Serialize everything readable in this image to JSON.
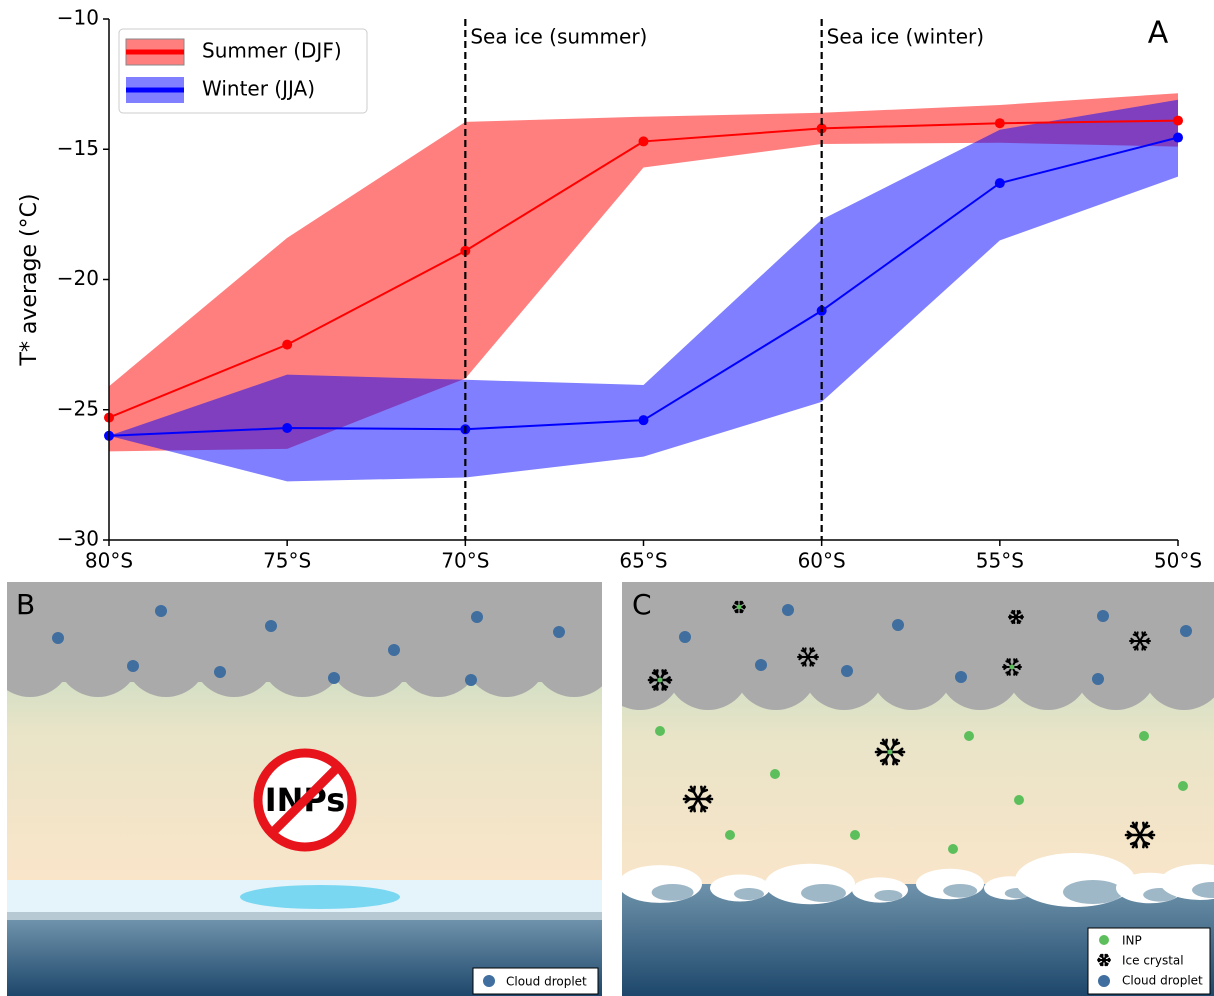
{
  "chart_data": {
    "type": "line",
    "panel_label": "A",
    "y_label": "T* average (°C)",
    "x": [
      80,
      75,
      70,
      65,
      60,
      55,
      50
    ],
    "xlim": [
      80,
      50
    ],
    "xticks": [
      {
        "value": 80,
        "label": "80°S"
      },
      {
        "value": 75,
        "label": "75°S"
      },
      {
        "value": 70,
        "label": "70°S"
      },
      {
        "value": 65,
        "label": "65°S"
      },
      {
        "value": 60,
        "label": "60°S"
      },
      {
        "value": 55,
        "label": "55°S"
      },
      {
        "value": 50,
        "label": "50°S"
      }
    ],
    "ylim": [
      -30,
      -10
    ],
    "yticks": [
      {
        "value": -30,
        "label": "−30"
      },
      {
        "value": -25,
        "label": "−25"
      },
      {
        "value": -20,
        "label": "−20"
      },
      {
        "value": -15,
        "label": "−15"
      },
      {
        "value": -10,
        "label": "−10"
      }
    ],
    "band_opacity": 0.5,
    "legend": "upper left",
    "series": [
      {
        "name": "Summer (DJF)",
        "color": "#ff0000",
        "values": [
          -25.3,
          -22.5,
          -18.9,
          -14.7,
          -14.2,
          -14.0,
          -13.9
        ],
        "lower": [
          -26.6,
          -26.5,
          -23.8,
          -15.7,
          -14.8,
          -14.75,
          -14.9
        ],
        "upper": [
          -24.1,
          -18.4,
          -13.95,
          -13.75,
          -13.6,
          -13.3,
          -12.85
        ]
      },
      {
        "name": "Winter (JJA)",
        "color": "#0000ff",
        "values": [
          -26.0,
          -25.7,
          -25.75,
          -25.4,
          -21.2,
          -16.3,
          -14.55
        ],
        "lower": [
          -26.0,
          -27.75,
          -27.6,
          -26.8,
          -24.7,
          -18.5,
          -16.05
        ],
        "upper": [
          -26.0,
          -23.65,
          -23.85,
          -24.05,
          -17.7,
          -14.25,
          -13.1
        ]
      }
    ],
    "vlines": [
      {
        "x": 70,
        "label": "Sea ice (summer)"
      },
      {
        "x": 60,
        "label": "Sea ice (winter)"
      }
    ]
  },
  "panels": {
    "B": {
      "label": "B",
      "sign": "INPs",
      "legend": [
        "Cloud droplet"
      ]
    },
    "C": {
      "label": "C",
      "legend": [
        "INP",
        "Ice crystal",
        "Cloud droplet"
      ]
    }
  }
}
